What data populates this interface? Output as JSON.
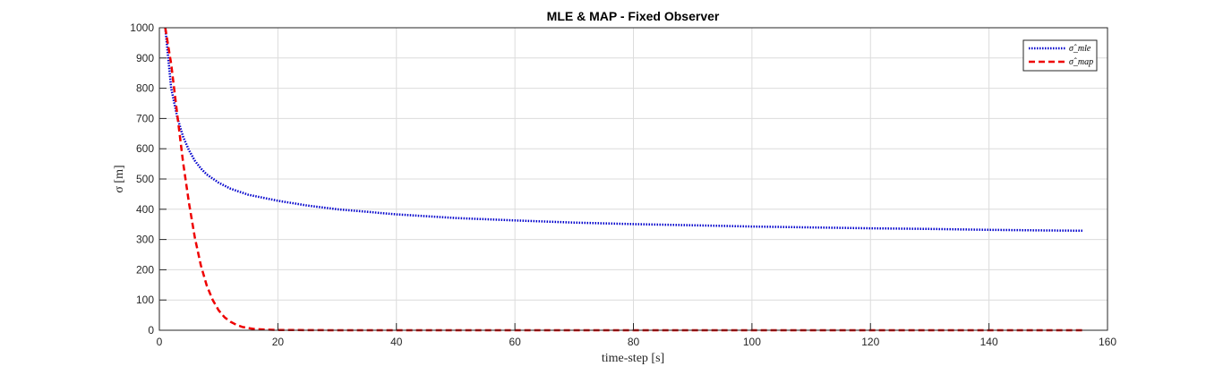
{
  "chart_data": {
    "type": "line",
    "title": "MLE & MAP  - Fixed Observer",
    "xlabel": "time-step [s]",
    "ylabel": "σ [m]",
    "xlim": [
      0,
      160
    ],
    "ylim": [
      0,
      1000
    ],
    "xticks": [
      0,
      20,
      40,
      60,
      80,
      100,
      120,
      140,
      160
    ],
    "yticks": [
      0,
      100,
      200,
      300,
      400,
      500,
      600,
      700,
      800,
      900,
      1000
    ],
    "grid": true,
    "legend_position": "top-right",
    "series": [
      {
        "name": "σ̂_mle",
        "color": "#0000cc",
        "line_style": "dotted",
        "x": [
          1,
          2,
          3,
          4,
          5,
          6,
          7,
          8,
          10,
          12,
          15,
          20,
          25,
          30,
          40,
          50,
          60,
          70,
          80,
          90,
          100,
          110,
          120,
          130,
          140,
          150,
          156
        ],
        "y": [
          1000,
          800,
          705,
          640,
          595,
          560,
          535,
          515,
          488,
          468,
          448,
          428,
          412,
          400,
          383,
          371,
          363,
          356,
          351,
          347,
          343,
          340,
          337,
          335,
          332,
          330,
          329
        ]
      },
      {
        "name": "σ̂_map",
        "color": "#ee0000",
        "line_style": "dashed",
        "x": [
          1,
          2,
          3,
          4,
          5,
          6,
          7,
          8,
          9,
          10,
          11,
          12,
          13,
          14,
          15,
          16,
          18,
          20,
          30,
          40,
          60,
          80,
          100,
          120,
          140,
          156
        ],
        "y": [
          1000,
          880,
          715,
          555,
          420,
          305,
          215,
          148,
          100,
          66,
          43,
          28,
          18,
          11,
          7,
          4,
          2,
          1,
          0,
          0,
          0,
          0,
          0,
          0,
          0,
          0
        ]
      }
    ]
  }
}
